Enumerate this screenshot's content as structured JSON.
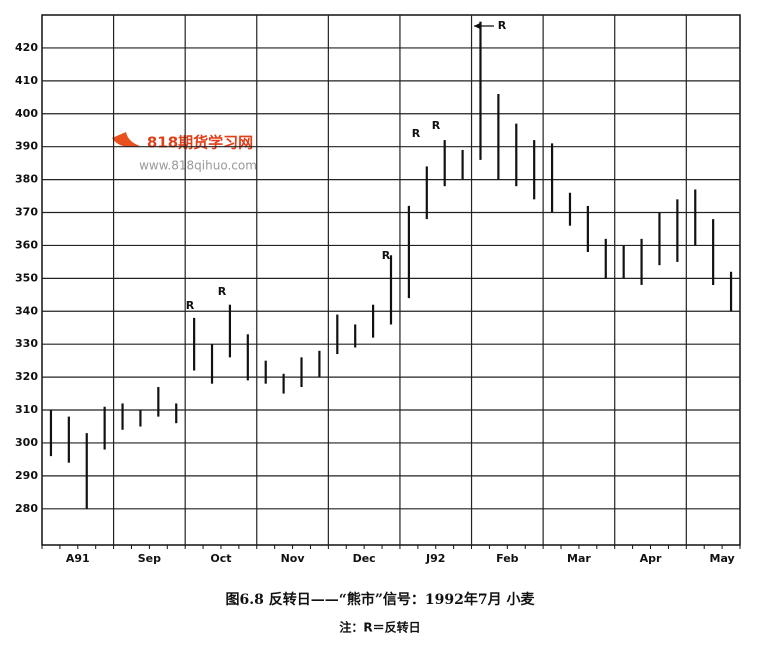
{
  "chart_data": {
    "type": "range-bar",
    "categories": [
      null,
      "A91",
      null,
      null,
      null,
      "Sep",
      null,
      null,
      null,
      "Oct",
      null,
      null,
      null,
      "Nov",
      null,
      null,
      null,
      "Dec",
      null,
      null,
      null,
      "J92",
      null,
      null,
      null,
      "Feb",
      null,
      null,
      null,
      "Mar",
      null,
      null,
      null,
      "Apr",
      null,
      null,
      null,
      "May",
      null
    ],
    "highs": [
      310,
      308,
      303,
      311,
      312,
      310,
      317,
      312,
      338,
      330,
      342,
      333,
      325,
      321,
      326,
      328,
      339,
      336,
      342,
      357,
      372,
      384,
      392,
      389,
      428,
      406,
      397,
      392,
      391,
      376,
      372,
      362,
      360,
      362,
      370,
      374,
      377,
      368,
      352
    ],
    "lows": [
      296,
      294,
      280,
      298,
      304,
      305,
      308,
      306,
      322,
      318,
      326,
      319,
      318,
      315,
      317,
      320,
      327,
      329,
      332,
      336,
      344,
      368,
      378,
      380,
      386,
      380,
      378,
      374,
      370,
      366,
      358,
      350,
      350,
      348,
      354,
      355,
      360,
      348,
      340
    ],
    "color": "#111111",
    "ylim": [
      269,
      430
    ],
    "yticks": [
      280,
      290,
      300,
      310,
      320,
      330,
      340,
      350,
      360,
      370,
      380,
      390,
      400,
      410,
      420
    ],
    "grid": true,
    "annotations": [
      "R",
      "R",
      "R",
      "R",
      "R",
      "R"
    ],
    "watermark": {
      "title": "818期货学习网",
      "url": "www.818qihuo.com"
    },
    "caption": "图6.8  反转日——“熊市”信号：1992年7月   小麦",
    "note": "注：R＝反转日"
  }
}
